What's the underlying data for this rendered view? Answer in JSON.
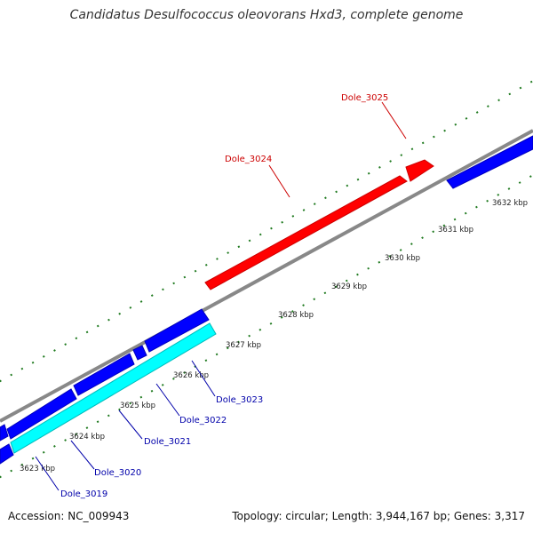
{
  "title": "Candidatus Desulfococcus oleovorans Hxd3, complete genome",
  "footer": {
    "accession": "Accession: NC_009943",
    "summary": "Topology: circular; Length: 3,944,167 bp; Genes: 3,317"
  },
  "colors": {
    "forward_gene": "#ff0000",
    "reverse_gene": "#0000ff",
    "rna_or_other": "#00ffff",
    "backbone": "#888888",
    "tick": "#1f7a1f",
    "forward_label": "#cc0000",
    "reverse_label": "#0000aa"
  },
  "kbp_ticks": [
    "3623 kbp",
    "3624 kbp",
    "3625 kbp",
    "3626 kbp",
    "3627 kbp",
    "3628 kbp",
    "3629 kbp",
    "3630 kbp",
    "3631 kbp",
    "3632 kbp"
  ],
  "gene_labels": {
    "forward": [
      "Dole_3024",
      "Dole_3025"
    ],
    "reverse": [
      "Dole_3019",
      "Dole_3020",
      "Dole_3021",
      "Dole_3022",
      "Dole_3023"
    ]
  }
}
